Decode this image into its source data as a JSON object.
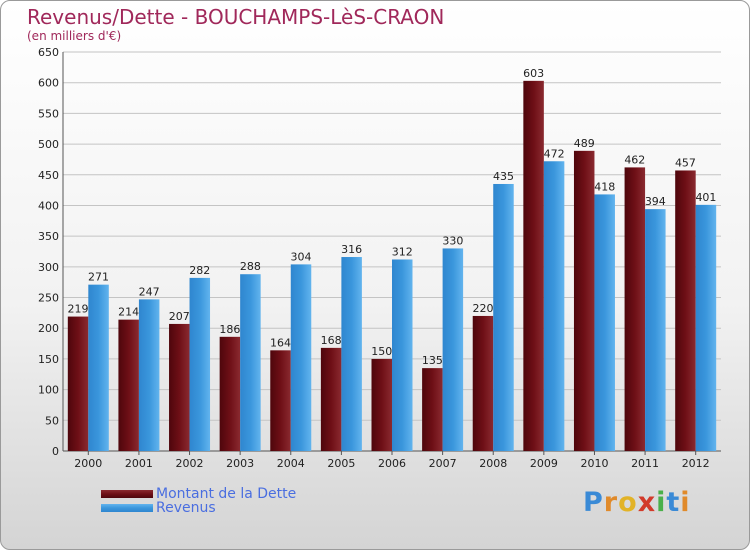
{
  "header": {
    "title": "Revenus/Dette - BOUCHAMPS-LèS-CRAON",
    "subtitle": "(en milliers d'€)"
  },
  "colors": {
    "dette": "#6e0f16",
    "revenus": "#3a96dc",
    "title": "#a0285a",
    "legend_text": "#4a6ee0"
  },
  "chart_data": {
    "type": "bar",
    "title": "Revenus/Dette - BOUCHAMPS-LèS-CRAON",
    "subtitle": "(en milliers d'€)",
    "categories": [
      "2000",
      "2001",
      "2002",
      "2003",
      "2004",
      "2005",
      "2006",
      "2007",
      "2008",
      "2009",
      "2010",
      "2011",
      "2012"
    ],
    "series": [
      {
        "name": "Montant de la Dette",
        "values": [
          219,
          214,
          207,
          186,
          164,
          168,
          150,
          135,
          220,
          603,
          489,
          462,
          457
        ]
      },
      {
        "name": "Revenus",
        "values": [
          271,
          247,
          282,
          288,
          304,
          316,
          312,
          330,
          435,
          472,
          418,
          394,
          401
        ]
      }
    ],
    "ylim": [
      0,
      650
    ],
    "yticks": [
      0,
      50,
      100,
      150,
      200,
      250,
      300,
      350,
      400,
      450,
      500,
      550,
      600,
      650
    ],
    "grid": true,
    "legend": "bottom-left"
  },
  "legend": {
    "items": [
      {
        "label": "Montant de la Dette"
      },
      {
        "label": "Revenus"
      }
    ]
  },
  "watermark": {
    "text": "Proxiti",
    "letters": [
      "P",
      "r",
      "o",
      "x",
      "i",
      "t",
      "i"
    ]
  }
}
